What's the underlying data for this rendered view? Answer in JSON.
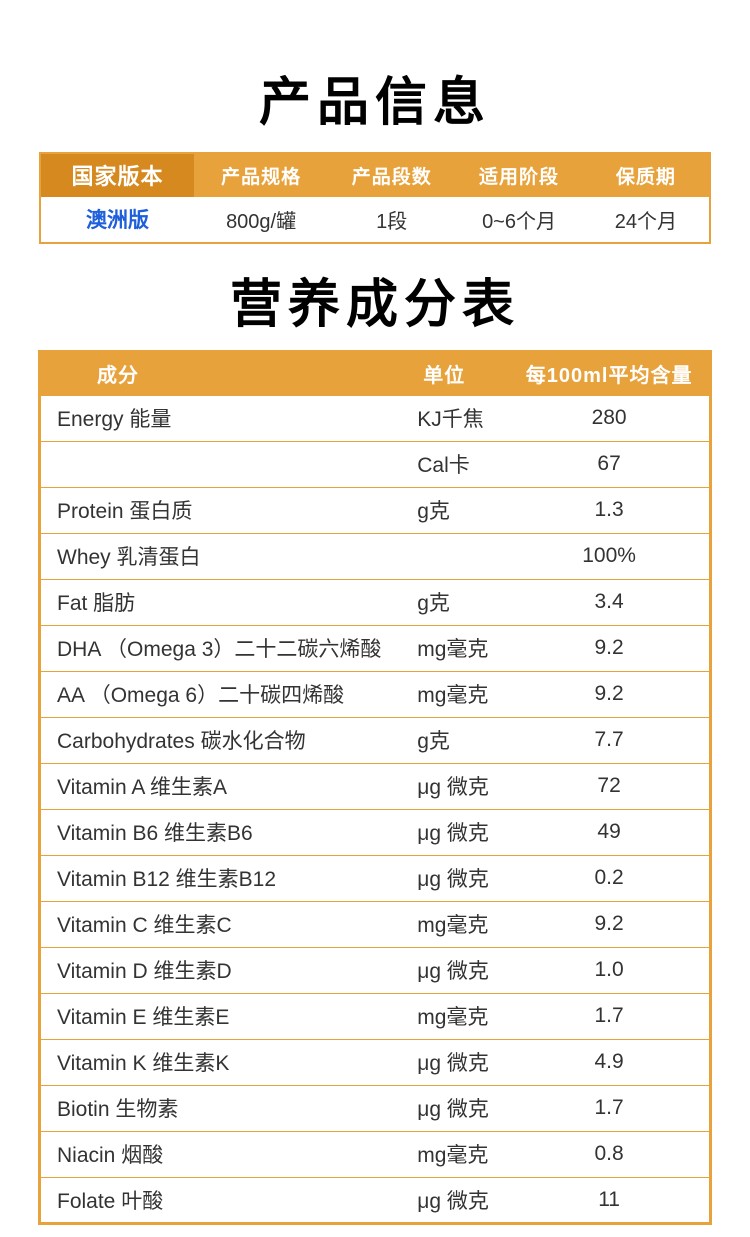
{
  "titles": {
    "product_info": "产品信息",
    "nutrition": "营养成分表"
  },
  "product_table": {
    "headers": [
      "国家版本",
      "产品规格",
      "产品段数",
      "适用阶段",
      "保质期"
    ],
    "row": [
      "澳洲版",
      "800g/罐",
      "1段",
      "0~6个月",
      "24个月"
    ]
  },
  "nutrition_table": {
    "headers": [
      "成分",
      "单位",
      "每100ml平均含量"
    ],
    "rows": [
      [
        "Energy 能量",
        "KJ千焦",
        "280"
      ],
      [
        "",
        "Cal卡",
        "67"
      ],
      [
        "Protein 蛋白质",
        "g克",
        "1.3"
      ],
      [
        "Whey 乳清蛋白",
        "",
        "100%"
      ],
      [
        "Fat 脂肪",
        "g克",
        "3.4"
      ],
      [
        "DHA （Omega 3）二十二碳六烯酸",
        "mg毫克",
        "9.2"
      ],
      [
        "AA （Omega 6）二十碳四烯酸",
        "mg毫克",
        "9.2"
      ],
      [
        "Carbohydrates 碳水化合物",
        "g克",
        "7.7"
      ],
      [
        "Vitamin A 维生素A",
        "μg 微克",
        "72"
      ],
      [
        "Vitamin B6 维生素B6",
        "μg 微克",
        "49"
      ],
      [
        "Vitamin B12 维生素B12",
        "μg 微克",
        "0.2"
      ],
      [
        "Vitamin C 维生素C",
        "mg毫克",
        "9.2"
      ],
      [
        "Vitamin D 维生素D",
        "μg 微克",
        "1.0"
      ],
      [
        "Vitamin E 维生素E",
        "mg毫克",
        "1.7"
      ],
      [
        "Vitamin K 维生素K",
        "μg 微克",
        "4.9"
      ],
      [
        "Biotin 生物素",
        "μg 微克",
        "1.7"
      ],
      [
        "Niacin 烟酸",
        "mg毫克",
        "0.8"
      ],
      [
        "Folate 叶酸",
        "μg 微克",
        "11"
      ]
    ]
  },
  "colors": {
    "gold": "#E8A23B",
    "gold_dark": "#D6891E",
    "version_blue": "#1E5FDB",
    "header_text": "#FFFFFF"
  }
}
